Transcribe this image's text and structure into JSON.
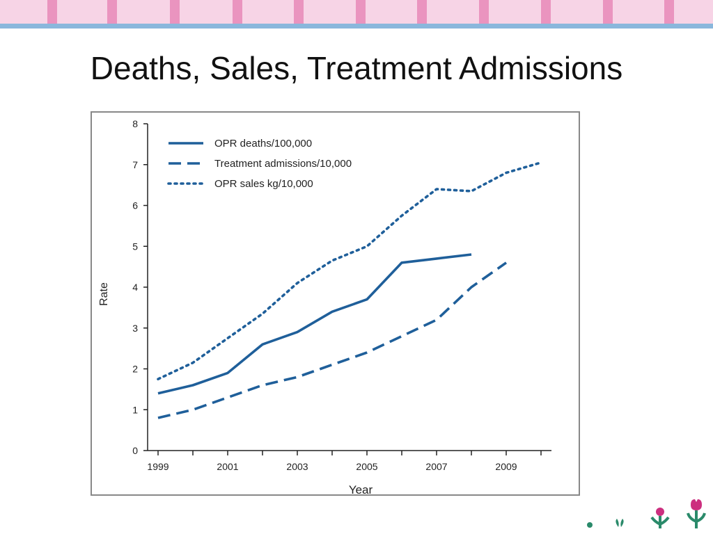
{
  "slide": {
    "title": "Deaths, Sales, Treatment Admissions"
  },
  "colors": {
    "top_band": "#f7d4e6",
    "top_band_stripe": "#ea94bf",
    "top_rule": "#8ab7dc",
    "series": "#1f5f9a",
    "decor_flower": "#cc2f7f",
    "decor_leaf": "#2a8a6a"
  },
  "chart_data": {
    "type": "line",
    "title": "",
    "xlabel": "Year",
    "ylabel": "Rate",
    "xlim": [
      1998.7,
      2010.3
    ],
    "ylim": [
      0,
      8
    ],
    "x_ticks": [
      1999,
      2000,
      2001,
      2002,
      2003,
      2004,
      2005,
      2006,
      2007,
      2008,
      2009,
      2010
    ],
    "x_tick_labels": [
      "1999",
      "2001",
      "2003",
      "2005",
      "2007",
      "2009"
    ],
    "y_ticks": [
      0,
      1,
      2,
      3,
      4,
      5,
      6,
      7,
      8
    ],
    "grid": false,
    "legend_position": "top-left",
    "series": [
      {
        "name": "OPR deaths/100,000",
        "style": "solid",
        "color": "#1f5f9a",
        "x": [
          1999,
          2000,
          2001,
          2002,
          2003,
          2004,
          2005,
          2006,
          2007,
          2008
        ],
        "y": [
          1.4,
          1.6,
          1.9,
          2.6,
          2.9,
          3.4,
          3.7,
          4.6,
          4.7,
          4.8
        ]
      },
      {
        "name": "Treatment admissions/10,000",
        "style": "dashed",
        "color": "#1f5f9a",
        "x": [
          1999,
          2000,
          2001,
          2002,
          2003,
          2004,
          2005,
          2006,
          2007,
          2008,
          2009
        ],
        "y": [
          0.8,
          1.0,
          1.3,
          1.6,
          1.8,
          2.1,
          2.4,
          2.8,
          3.2,
          4.0,
          4.6
        ]
      },
      {
        "name": "OPR sales kg/10,000",
        "style": "dotted",
        "color": "#1f5f9a",
        "x": [
          1999,
          2000,
          2001,
          2002,
          2003,
          2004,
          2005,
          2006,
          2007,
          2008,
          2009,
          2010
        ],
        "y": [
          1.75,
          2.15,
          2.75,
          3.35,
          4.1,
          4.65,
          5.0,
          5.75,
          6.4,
          6.35,
          6.8,
          7.05
        ]
      }
    ]
  }
}
